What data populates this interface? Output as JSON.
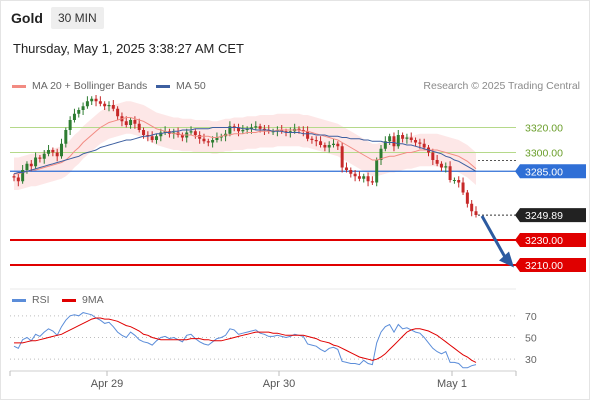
{
  "header": {
    "symbol": "Gold",
    "timeframe": "30 MIN"
  },
  "datetime": "Thursday, May 1, 2025 3:38:27 AM CET",
  "legend": {
    "ma20_label": "MA 20 + Bollinger Bands",
    "ma50_label": "MA 50",
    "credit": "Research © 2025 Trading Central",
    "rsi_label": "RSI",
    "rsi_ma_label": "9MA"
  },
  "colors": {
    "ma20": "#f28b82",
    "ma50": "#3d5fa0",
    "bands": "#fde3e3",
    "up": "#2e7d32",
    "down": "#c62828",
    "support": "#e00000",
    "resistance_line": "#b5d98a",
    "pivot": "#2f6fd6",
    "arrow": "#2c5aa0",
    "rsi": "#5b8dd9",
    "rsi_ma": "#e00000"
  },
  "chart_data": [
    {
      "type": "candlestick",
      "x_labels": [
        "Apr 29",
        "Apr 30",
        "May 1"
      ],
      "ylim": [
        3198,
        3342
      ],
      "levels": [
        {
          "label": "3320.00",
          "value": 3320,
          "kind": "resistance"
        },
        {
          "label": "3300.00",
          "value": 3300,
          "kind": "resistance"
        },
        {
          "label": "3285.00",
          "value": 3285,
          "kind": "pivot"
        },
        {
          "label": "3249.89",
          "value": 3249.89,
          "kind": "last"
        },
        {
          "label": "3230.00",
          "value": 3230,
          "kind": "support"
        },
        {
          "label": "3210.00",
          "value": 3210,
          "kind": "support"
        }
      ],
      "projection": {
        "from": 3250,
        "to": 3212,
        "direction": "down"
      },
      "closes": [
        3280,
        3277,
        3286,
        3291,
        3289,
        3296,
        3295,
        3299,
        3302,
        3300,
        3297,
        3307,
        3318,
        3326,
        3331,
        3334,
        3337,
        3341,
        3343,
        3341,
        3339,
        3337,
        3338,
        3335,
        3329,
        3325,
        3322,
        3326,
        3323,
        3318,
        3314,
        3313,
        3310,
        3313,
        3316,
        3317,
        3315,
        3316,
        3314,
        3312,
        3316,
        3317,
        3314,
        3311,
        3309,
        3308,
        3310,
        3312,
        3313,
        3315,
        3321,
        3320,
        3317,
        3318,
        3319,
        3320,
        3321,
        3319,
        3318,
        3317,
        3317,
        3318,
        3317,
        3316,
        3317,
        3319,
        3318,
        3317,
        3311,
        3310,
        3309,
        3306,
        3304,
        3306,
        3307,
        3305,
        3288,
        3286,
        3283,
        3281,
        3279,
        3281,
        3277,
        3276,
        3294,
        3303,
        3309,
        3313,
        3305,
        3314,
        3311,
        3312,
        3310,
        3308,
        3307,
        3304,
        3300,
        3294,
        3291,
        3288,
        3289,
        3278,
        3278,
        3276,
        3268,
        3259,
        3253,
        3250
      ],
      "ma20": [
        3283,
        3283,
        3284,
        3285,
        3286,
        3286,
        3287,
        3288,
        3289,
        3290,
        3291,
        3292,
        3294,
        3297,
        3301,
        3304,
        3308,
        3311,
        3314,
        3317,
        3320,
        3322,
        3324,
        3325,
        3326,
        3327,
        3328,
        3328,
        3327,
        3326,
        3325,
        3323,
        3321,
        3319,
        3318,
        3317,
        3316,
        3315,
        3315,
        3314,
        3314,
        3314,
        3313,
        3313,
        3313,
        3313,
        3312,
        3312,
        3313,
        3314,
        3314,
        3315,
        3315,
        3315,
        3316,
        3316,
        3316,
        3317,
        3317,
        3317,
        3317,
        3318,
        3318,
        3318,
        3318,
        3318,
        3318,
        3317,
        3317,
        3316,
        3315,
        3314,
        3313,
        3312,
        3311,
        3310,
        3308,
        3306,
        3304,
        3302,
        3300,
        3298,
        3296,
        3294,
        3294,
        3295,
        3296,
        3297,
        3297,
        3298,
        3299,
        3300,
        3300,
        3301,
        3302,
        3302,
        3302,
        3302,
        3302,
        3301,
        3300,
        3299,
        3298,
        3297,
        3295,
        3293,
        3290,
        3287
      ],
      "ma50": [
        3283,
        3284,
        3284,
        3285,
        3286,
        3287,
        3288,
        3289,
        3290,
        3291,
        3292,
        3293,
        3294,
        3295,
        3296,
        3297,
        3299,
        3300,
        3301,
        3302,
        3304,
        3305,
        3306,
        3307,
        3308,
        3309,
        3310,
        3310,
        3311,
        3312,
        3313,
        3313,
        3314,
        3315,
        3315,
        3316,
        3316,
        3317,
        3317,
        3318,
        3318,
        3318,
        3319,
        3319,
        3319,
        3319,
        3320,
        3320,
        3320,
        3320,
        3320,
        3320,
        3320,
        3319,
        3319,
        3319,
        3318,
        3318,
        3318,
        3318,
        3317,
        3317,
        3317,
        3316,
        3316,
        3316,
        3316,
        3315,
        3315,
        3315,
        3314,
        3314,
        3314,
        3313,
        3313,
        3313,
        3312,
        3312,
        3311,
        3311,
        3311,
        3310,
        3310,
        3309,
        3309,
        3309,
        3308,
        3308,
        3308,
        3307,
        3307,
        3306,
        3306,
        3305,
        3304,
        3303,
        3302,
        3301,
        3300,
        3299,
        3297,
        3296,
        3294,
        3293,
        3291,
        3289,
        3287,
        3285
      ]
    },
    {
      "type": "line",
      "name": "RSI",
      "ylim": [
        20,
        80
      ],
      "y_ticks": [
        "70",
        "50",
        "30"
      ],
      "rsi": [
        42,
        40,
        48,
        50,
        47,
        53,
        51,
        55,
        58,
        56,
        52,
        60,
        66,
        70,
        71,
        70,
        73,
        72,
        71,
        68,
        66,
        63,
        64,
        60,
        55,
        52,
        50,
        55,
        52,
        48,
        46,
        45,
        43,
        47,
        50,
        51,
        49,
        50,
        48,
        46,
        52,
        53,
        49,
        46,
        44,
        43,
        46,
        49,
        50,
        52,
        58,
        57,
        53,
        54,
        55,
        56,
        57,
        54,
        53,
        51,
        51,
        52,
        51,
        50,
        51,
        53,
        52,
        51,
        44,
        43,
        42,
        39,
        37,
        40,
        41,
        39,
        28,
        27,
        26,
        26,
        25,
        29,
        26,
        25,
        45,
        55,
        60,
        62,
        55,
        62,
        58,
        59,
        57,
        55,
        54,
        50,
        45,
        40,
        37,
        35,
        37,
        27,
        27,
        26,
        22,
        22,
        24,
        25
      ],
      "rsi_ma": [
        45,
        45,
        45,
        46,
        47,
        47,
        48,
        49,
        50,
        51,
        52,
        53,
        55,
        57,
        59,
        61,
        63,
        65,
        67,
        68,
        68,
        67,
        67,
        66,
        65,
        63,
        61,
        60,
        58,
        56,
        53,
        52,
        50,
        49,
        48,
        48,
        48,
        48,
        48,
        48,
        48,
        49,
        49,
        49,
        48,
        48,
        47,
        47,
        47,
        48,
        49,
        50,
        51,
        52,
        53,
        54,
        55,
        55,
        55,
        55,
        54,
        54,
        53,
        52,
        52,
        52,
        52,
        52,
        51,
        50,
        49,
        47,
        46,
        45,
        43,
        42,
        40,
        38,
        36,
        34,
        32,
        31,
        30,
        29,
        30,
        32,
        35,
        39,
        43,
        47,
        51,
        55,
        57,
        58,
        58,
        57,
        56,
        54,
        52,
        49,
        46,
        43,
        40,
        37,
        34,
        32,
        29,
        27
      ]
    }
  ]
}
